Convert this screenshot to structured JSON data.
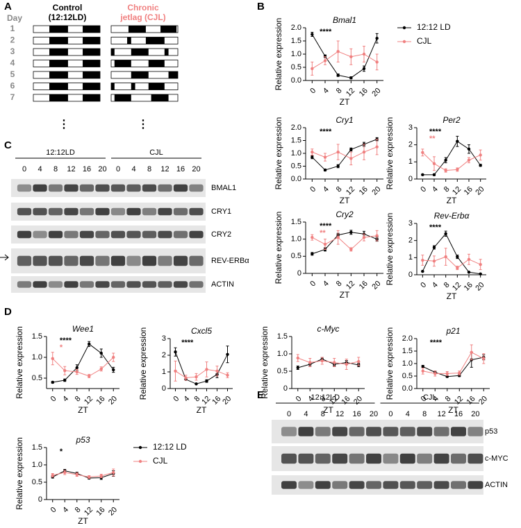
{
  "panels": {
    "letters": [
      "A",
      "B",
      "C",
      "D",
      "E"
    ],
    "A": {
      "day_label": "Day",
      "days": [
        "1",
        "2",
        "3",
        "4",
        "5",
        "6",
        "7"
      ],
      "control": [
        "Control",
        "(12:12LD)"
      ],
      "cjl": [
        "Chronic",
        "jetlag (CJL)"
      ],
      "ellipsis": "⋮"
    },
    "C": {
      "groups": [
        "12:12LD",
        "CJL"
      ],
      "lanes": [
        "0",
        "4",
        "8",
        "12",
        "16",
        "20"
      ],
      "proteins": [
        "BMAL1",
        "CRY1",
        "CRY2",
        "REV-ERBα",
        "ACTIN"
      ]
    },
    "E": {
      "groups": [
        "12:12LD",
        "CJL"
      ],
      "lanes": [
        "0",
        "4",
        "8",
        "12",
        "16",
        "20"
      ],
      "proteins": [
        "p53",
        "c-MYC",
        "ACTIN"
      ]
    }
  },
  "chart_data": [
    {
      "type": "line",
      "title": "Bmal1",
      "ylabel": "Relative expression",
      "xlabel": "ZT",
      "x": [
        0,
        4,
        8,
        12,
        16,
        20
      ],
      "xlim": [
        -2,
        22
      ],
      "xticks": [
        0,
        4,
        8,
        12,
        16,
        20
      ],
      "ylim": [
        0,
        2
      ],
      "yticks": [
        {
          "value": 0,
          "label": "0.0"
        },
        0.5,
        {
          "value": 1,
          "label": "1.0"
        },
        1.5,
        {
          "value": 2,
          "label": "2.0"
        }
      ],
      "legend": "right",
      "series": [
        {
          "name": "12:12 LD",
          "color": "#000000",
          "values": [
            1.75,
            0.92,
            0.2,
            0.1,
            0.45,
            1.6
          ],
          "errors": [
            0.08,
            0.05,
            0.05,
            0.04,
            0.1,
            0.18
          ]
        },
        {
          "name": "CJL",
          "color": "#f08080",
          "values": [
            0.45,
            0.75,
            1.1,
            0.9,
            1.0,
            0.7
          ],
          "errors": [
            0.25,
            0.15,
            0.4,
            0.3,
            0.3,
            0.3
          ]
        }
      ],
      "annotations": [
        {
          "text": "****",
          "color": "#000000"
        }
      ]
    },
    {
      "type": "line",
      "title": "Cry1",
      "ylabel": "Relative expression",
      "xlabel": "ZT",
      "x": [
        0,
        4,
        8,
        12,
        16,
        20
      ],
      "xlim": [
        -2,
        22
      ],
      "xticks": [
        0,
        4,
        8,
        12,
        16,
        20
      ],
      "ylim": [
        0,
        2
      ],
      "yticks": [
        {
          "value": 0,
          "label": "0.0"
        },
        0.5,
        {
          "value": 1,
          "label": "1.0"
        },
        1.5,
        {
          "value": 2,
          "label": "2.0"
        }
      ],
      "series": [
        {
          "color": "#000000",
          "values": [
            0.85,
            0.35,
            0.5,
            1.15,
            1.35,
            1.55
          ],
          "errors": [
            0.06,
            0.04,
            0.06,
            0.06,
            0.08,
            0.06
          ]
        },
        {
          "color": "#f08080",
          "values": [
            1.05,
            0.85,
            1.05,
            0.8,
            1.05,
            1.25
          ],
          "errors": [
            0.12,
            0.15,
            0.3,
            0.25,
            0.3,
            0.3
          ]
        }
      ],
      "annotations": [
        {
          "text": "****",
          "color": "#000000"
        }
      ]
    },
    {
      "type": "line",
      "title": "Per2",
      "ylabel": "Relative expression",
      "xlabel": "ZT",
      "x": [
        0,
        4,
        8,
        12,
        16,
        20
      ],
      "xlim": [
        -2,
        22
      ],
      "xticks": [
        0,
        4,
        8,
        12,
        16,
        20
      ],
      "ylim": [
        0,
        3
      ],
      "yticks": [
        0,
        1,
        2,
        3
      ],
      "series": [
        {
          "color": "#000000",
          "values": [
            0.25,
            0.25,
            1.1,
            2.2,
            1.75,
            0.8
          ],
          "errors": [
            0.03,
            0.05,
            0.15,
            0.3,
            0.25,
            0.06
          ]
        },
        {
          "color": "#f08080",
          "values": [
            1.55,
            0.9,
            0.5,
            0.55,
            1.1,
            1.4
          ],
          "errors": [
            0.2,
            0.4,
            0.1,
            0.1,
            0.15,
            0.3
          ]
        }
      ],
      "annotations": [
        {
          "text": "****",
          "color": "#000000"
        },
        {
          "text": "**",
          "color": "#f08080"
        }
      ]
    },
    {
      "type": "line",
      "title": "Cry2",
      "ylabel": "Relative expression",
      "xlabel": "ZT",
      "x": [
        0,
        4,
        8,
        12,
        16,
        20
      ],
      "xlim": [
        -2,
        22
      ],
      "xticks": [
        0,
        4,
        8,
        12,
        16,
        20
      ],
      "ylim": [
        0,
        1.5
      ],
      "yticks": [
        0,
        0.5,
        {
          "value": 1,
          "label": "1.0"
        },
        1.5
      ],
      "series": [
        {
          "color": "#000000",
          "values": [
            0.57,
            0.7,
            1.12,
            1.2,
            1.15,
            1.0
          ],
          "errors": [
            0.04,
            0.05,
            0.05,
            0.06,
            0.08,
            0.06
          ]
        },
        {
          "color": "#f08080",
          "values": [
            1.05,
            0.85,
            1.05,
            0.7,
            1.05,
            1.1
          ],
          "errors": [
            0.08,
            0.15,
            0.2,
            0.05,
            0.1,
            0.15
          ]
        }
      ],
      "annotations": [
        {
          "text": "****",
          "color": "#000000"
        },
        {
          "text": "**",
          "color": "#f08080"
        }
      ]
    },
    {
      "type": "line",
      "title": "Rev-Erbα",
      "ylabel": "Relative expression",
      "xlabel": "ZT",
      "x": [
        0,
        4,
        8,
        12,
        16,
        20
      ],
      "xlim": [
        -2,
        22
      ],
      "xticks": [
        0,
        4,
        8,
        12,
        16,
        20
      ],
      "ylim": [
        0,
        3
      ],
      "yticks": [
        0,
        1,
        2,
        3
      ],
      "series": [
        {
          "color": "#000000",
          "values": [
            0.2,
            1.6,
            2.4,
            1.05,
            0.15,
            0.05
          ],
          "errors": [
            0.03,
            0.1,
            0.15,
            0.1,
            0.03,
            0.02
          ]
        },
        {
          "color": "#f08080",
          "values": [
            0.85,
            0.8,
            1.05,
            0.4,
            0.9,
            0.6
          ],
          "errors": [
            0.3,
            0.3,
            0.5,
            0.1,
            0.3,
            0.3
          ]
        }
      ],
      "annotations": [
        {
          "text": "****",
          "color": "#000000"
        }
      ]
    },
    {
      "type": "line",
      "title": "Wee1",
      "ylabel": "Relative expression",
      "xlabel": "ZT",
      "x": [
        0,
        4,
        8,
        12,
        16,
        20
      ],
      "xlim": [
        -2,
        22
      ],
      "xticks": [
        0,
        4,
        8,
        12,
        16,
        20
      ],
      "ylim": [
        0.25,
        1.5
      ],
      "yticks": [
        0.5,
        {
          "value": 1,
          "label": "1.0"
        },
        1.5
      ],
      "series": [
        {
          "color": "#000000",
          "values": [
            0.4,
            0.45,
            0.75,
            1.32,
            1.1,
            0.7
          ],
          "errors": [
            0.02,
            0.03,
            0.07,
            0.06,
            0.1,
            0.06
          ]
        },
        {
          "color": "#f08080",
          "values": [
            0.97,
            0.68,
            0.65,
            0.55,
            0.72,
            1.0
          ],
          "errors": [
            0.15,
            0.1,
            0.06,
            0.04,
            0.05,
            0.1
          ]
        }
      ],
      "annotations": [
        {
          "text": "****",
          "color": "#000000"
        },
        {
          "text": "*",
          "color": "#f08080"
        }
      ]
    },
    {
      "type": "line",
      "title": "Cxcl5",
      "ylabel": "Relative expression",
      "xlabel": "ZT",
      "x": [
        0,
        4,
        8,
        12,
        16,
        20
      ],
      "xlim": [
        -2,
        22
      ],
      "xticks": [
        0,
        4,
        8,
        12,
        16,
        20
      ],
      "ylim": [
        0,
        3
      ],
      "yticks": [
        0,
        1,
        2,
        3
      ],
      "series": [
        {
          "color": "#000000",
          "values": [
            2.2,
            0.55,
            0.28,
            0.45,
            0.85,
            2.05
          ],
          "errors": [
            0.25,
            0.05,
            0.04,
            0.08,
            0.2,
            0.5
          ]
        },
        {
          "color": "#f08080",
          "values": [
            1.05,
            0.65,
            0.7,
            1.15,
            1.05,
            0.8
          ],
          "errors": [
            0.6,
            0.15,
            0.2,
            0.45,
            0.3,
            0.15
          ]
        }
      ],
      "annotations": [
        {
          "text": "****",
          "color": "#000000"
        }
      ]
    },
    {
      "type": "line",
      "title": "c-Myc",
      "ylabel": "Relative expression",
      "xlabel": "ZT",
      "x": [
        0,
        4,
        8,
        12,
        16,
        20
      ],
      "xlim": [
        -2,
        22
      ],
      "xticks": [
        0,
        4,
        8,
        12,
        16,
        20
      ],
      "ylim": [
        0,
        1.5
      ],
      "yticks": [
        0,
        0.5,
        {
          "value": 1,
          "label": "1.0"
        },
        1.5
      ],
      "series": [
        {
          "color": "#000000",
          "values": [
            0.6,
            0.7,
            0.85,
            0.7,
            0.75,
            0.68
          ],
          "errors": [
            0.05,
            0.06,
            0.05,
            0.05,
            0.06,
            0.05
          ]
        },
        {
          "color": "#f08080",
          "values": [
            0.88,
            0.75,
            0.8,
            0.75,
            0.7,
            0.78
          ],
          "errors": [
            0.1,
            0.12,
            0.1,
            0.12,
            0.15,
            0.12
          ]
        }
      ],
      "annotations": []
    },
    {
      "type": "line",
      "title": "p21",
      "ylabel": "Relative expression",
      "xlabel": "ZT",
      "x": [
        0,
        4,
        8,
        12,
        16,
        20
      ],
      "xlim": [
        -2,
        22
      ],
      "xticks": [
        0,
        4,
        8,
        12,
        16,
        20
      ],
      "ylim": [
        0,
        2
      ],
      "yticks": [
        {
          "value": 0,
          "label": "0.0"
        },
        0.5,
        {
          "value": 1,
          "label": "1.0"
        },
        1.5,
        {
          "value": 2,
          "label": "2.0"
        }
      ],
      "series": [
        {
          "color": "#000000",
          "values": [
            0.88,
            0.65,
            0.48,
            0.52,
            1.15,
            1.25
          ],
          "errors": [
            0.05,
            0.05,
            0.03,
            0.04,
            0.3,
            0.1
          ]
        },
        {
          "color": "#f08080",
          "values": [
            0.7,
            0.6,
            0.6,
            0.62,
            1.45,
            1.2
          ],
          "errors": [
            0.12,
            0.1,
            0.08,
            0.08,
            0.3,
            0.2
          ]
        }
      ],
      "annotations": [
        {
          "text": "****",
          "color": "#000000"
        }
      ]
    },
    {
      "type": "line",
      "title": "p53",
      "ylabel": "Relative expression",
      "xlabel": "ZT",
      "x": [
        0,
        4,
        8,
        12,
        16,
        20
      ],
      "xlim": [
        -2,
        22
      ],
      "xticks": [
        0,
        4,
        8,
        12,
        16,
        20
      ],
      "ylim": [
        0,
        1.5
      ],
      "yticks": [
        0,
        0.5,
        {
          "value": 1,
          "label": "1.0"
        },
        1.5
      ],
      "legend": "right",
      "series": [
        {
          "name": "12:12 LD",
          "color": "#000000",
          "values": [
            0.65,
            0.83,
            0.75,
            0.62,
            0.63,
            0.75
          ],
          "errors": [
            0.03,
            0.04,
            0.04,
            0.03,
            0.05,
            0.08
          ]
        },
        {
          "name": "CJL",
          "color": "#f08080",
          "values": [
            0.7,
            0.78,
            0.72,
            0.65,
            0.68,
            0.78
          ],
          "errors": [
            0.05,
            0.06,
            0.05,
            0.04,
            0.05,
            0.1
          ]
        }
      ],
      "annotations": [
        {
          "text": "*",
          "color": "#000000"
        }
      ]
    }
  ]
}
